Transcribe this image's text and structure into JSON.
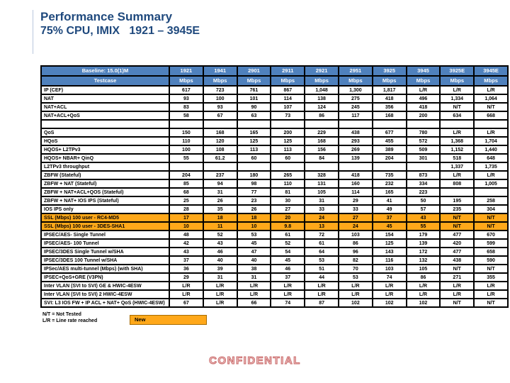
{
  "title": {
    "line1": "Performance Summary",
    "line2": "75% CPU, IMIX   1921 – 3945E"
  },
  "table": {
    "baseline_label": "Baseline: 15.0(1)M",
    "testcase_label": "Testcase",
    "unit": "Mbps",
    "columns": [
      "1921",
      "1941",
      "2901",
      "2911",
      "2921",
      "2951",
      "3925",
      "3945",
      "3925E",
      "3945E"
    ],
    "rows": [
      {
        "label": "IP (CEF)",
        "style": "normal",
        "values": [
          "617",
          "723",
          "761",
          "867",
          "1,048",
          "1,300",
          "1,817",
          "L/R",
          "L/R",
          "L/R"
        ]
      },
      {
        "label": "NAT",
        "style": "normal",
        "values": [
          "93",
          "100",
          "101",
          "114",
          "138",
          "275",
          "418",
          "496",
          "1,334",
          "1,064"
        ]
      },
      {
        "label": "NAT+ACL",
        "style": "normal",
        "values": [
          "83",
          "93",
          "90",
          "107",
          "124",
          "245",
          "356",
          "418",
          "N/T",
          "N/T"
        ]
      },
      {
        "label": "NAT+ACL+QoS",
        "style": "normal",
        "values": [
          "58",
          "67",
          "63",
          "73",
          "86",
          "117",
          "168",
          "200",
          "634",
          "668"
        ]
      },
      {
        "label": "",
        "style": "spacer",
        "values": [
          "",
          "",
          "",
          "",
          "",
          "",
          "",
          "",
          "",
          ""
        ]
      },
      {
        "label": "QoS",
        "style": "normal",
        "values": [
          "150",
          "168",
          "165",
          "200",
          "229",
          "438",
          "677",
          "780",
          "L/R",
          "L/R"
        ]
      },
      {
        "label": "HQoS",
        "style": "normal",
        "values": [
          "110",
          "120",
          "125",
          "125",
          "168",
          "293",
          "455",
          "572",
          "1,368",
          "1,704"
        ]
      },
      {
        "label": "HQOS+ L2TPv3",
        "style": "normal",
        "values": [
          "100",
          "108",
          "113",
          "113",
          "156",
          "269",
          "389",
          "509",
          "1,152",
          "1,440"
        ]
      },
      {
        "label": "HQOS+ NBAR+ QinQ",
        "style": "normal",
        "values": [
          "55",
          "61.2",
          "60",
          "60",
          "84",
          "139",
          "204",
          "301",
          "518",
          "648"
        ]
      },
      {
        "label": "L2TPv3 throughput",
        "style": "normal",
        "values": [
          "",
          "",
          "",
          "",
          "",
          "",
          "",
          "",
          "1,337",
          "1,735"
        ]
      },
      {
        "label": "ZBFW (Stateful)",
        "style": "normal",
        "values": [
          "204",
          "237",
          "180",
          "265",
          "328",
          "418",
          "735",
          "873",
          "L/R",
          "L/R"
        ]
      },
      {
        "label": "ZBFW + NAT (Stateful)",
        "style": "normal",
        "values": [
          "85",
          "94",
          "98",
          "110",
          "131",
          "160",
          "232",
          "334",
          "808",
          "1,005"
        ]
      },
      {
        "label": "ZBFW + NAT+ACL+QOS (Stateful)",
        "style": "normal",
        "values": [
          "68",
          "31",
          "77",
          "81",
          "105",
          "114",
          "165",
          "223",
          "",
          ""
        ]
      },
      {
        "label": "ZBFW + NAT+ IOS IPS (Stateful)",
        "style": "normal",
        "values": [
          "25",
          "26",
          "23",
          "30",
          "31",
          "29",
          "41",
          "50",
          "195",
          "258"
        ]
      },
      {
        "label": "IOS IPS only",
        "style": "normal",
        "values": [
          "28",
          "35",
          "26",
          "27",
          "33",
          "33",
          "49",
          "57",
          "235",
          "304"
        ]
      },
      {
        "label": "SSL (Mbps) 100 user - RC4-MD5",
        "style": "highlight",
        "values": [
          "17",
          "18",
          "18",
          "20",
          "24",
          "27",
          "37",
          "43",
          "N/T",
          "N/T"
        ]
      },
      {
        "label": "SSL (Mbps) 100 user - 3DES-SHA1",
        "style": "highlight",
        "values": [
          "10",
          "11",
          "10",
          "9.8",
          "13",
          "24",
          "45",
          "55",
          "N/T",
          "N/T"
        ]
      },
      {
        "label": "IPSEC/AES- Single Tunnel",
        "style": "normal",
        "values": [
          "48",
          "52",
          "53",
          "61",
          "72",
          "103",
          "154",
          "179",
          "477",
          "670"
        ]
      },
      {
        "label": "IPSEC/AES- 100 Tunnel",
        "style": "normal",
        "values": [
          "42",
          "43",
          "45",
          "52",
          "61",
          "86",
          "125",
          "139",
          "420",
          "599"
        ]
      },
      {
        "label": "IPSEC/3DES Single Tunnel w/SHA",
        "style": "normal",
        "values": [
          "43",
          "46",
          "47",
          "54",
          "64",
          "96",
          "143",
          "172",
          "477",
          "658"
        ]
      },
      {
        "label": "IPSEC/3DES 100 Tunnel w/SHA",
        "style": "normal",
        "values": [
          "37",
          "40",
          "40",
          "45",
          "53",
          "82",
          "116",
          "132",
          "438",
          "590"
        ]
      },
      {
        "label": "IPSec/AES multi-tunnel (Mbps)  (with SHA)",
        "style": "normal",
        "values": [
          "36",
          "39",
          "38",
          "46",
          "51",
          "70",
          "103",
          "105",
          "N/T",
          "N/T"
        ]
      },
      {
        "label": "IPSEC+QoS+GRE (V3PN)",
        "style": "normal",
        "values": [
          "29",
          "31",
          "31",
          "37",
          "44",
          "53",
          "74",
          "86",
          "271",
          "355"
        ]
      },
      {
        "label": "Inter VLAN (SVI to SVI) GE & HWIC-4ESW",
        "style": "normal",
        "values": [
          "L/R",
          "L/R",
          "L/R",
          "L/R",
          "L/R",
          "L/R",
          "L/R",
          "L/R",
          "L/R",
          "L/R"
        ]
      },
      {
        "label": "Inter VLAN (SVI to SVI) 2 HWIC-4ESW",
        "style": "normal",
        "values": [
          "L/R",
          "L/R",
          "L/R",
          "L/R",
          "L/R",
          "L/R",
          "L/R",
          "L/R",
          "L/R",
          "L/R"
        ]
      },
      {
        "label": "SVI: L3 IOS FW + IP ACL + NAT+ QoS (HWIC-4ESW)",
        "style": "normal",
        "values": [
          "67",
          "L/R",
          "66",
          "74",
          "87",
          "102",
          "102",
          "102",
          "N/T",
          "N/T"
        ]
      }
    ]
  },
  "overlays": {
    "new_badge": "New",
    "footnote_nt": "N/T = Not Tested",
    "footnote_lr": "L/R = Line rate reached"
  },
  "watermark": "CONFIDENTIAL",
  "colors": {
    "title": "#1f497d",
    "header_bg": "#4f81bd",
    "highlight_bg": "#ffa81a",
    "watermark_fill": "#f0c8c8",
    "watermark_stroke": "#c96a6a"
  }
}
